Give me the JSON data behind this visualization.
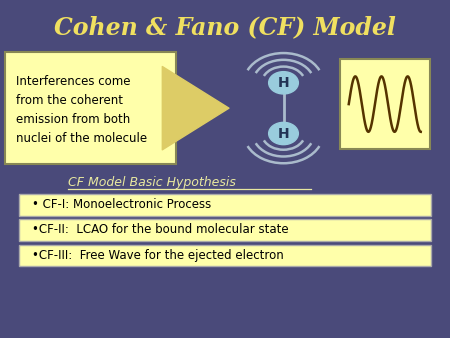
{
  "title": "Cohen & Fano (CF) Model",
  "title_color": "#f0e060",
  "bg_color": "#4a4a7a",
  "yellow_bg": "#ffffaa",
  "text_color": "#000000",
  "interference_text": "Interferences come\nfrom the coherent\nemission from both\nnuclei of the molecule",
  "hypothesis_label": "CF Model Basic Hypothesis",
  "items": [
    "• CF-I: Monoelectronic Process",
    "•CF-II:  LCAO for the bound molecular state",
    "•CF-III:  Free Wave for the ejected electron"
  ],
  "H_circle_color": "#99ccdd",
  "wave_color": "#aabbcc",
  "arrow_color": "#ddcc66"
}
